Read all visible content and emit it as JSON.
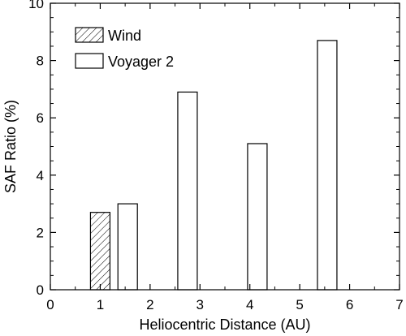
{
  "chart_data": {
    "type": "bar",
    "xlabel": "Heliocentric Distance (AU)",
    "ylabel": "SAF Ratio (%)",
    "xlim": [
      0,
      7
    ],
    "ylim": [
      0,
      10
    ],
    "xticks": [
      0,
      1,
      2,
      3,
      4,
      5,
      6,
      7
    ],
    "yticks": [
      0,
      2,
      4,
      6,
      8,
      10
    ],
    "grid": false,
    "legend_position": "top-left",
    "colors": {
      "axis": "#000000",
      "bar_edge": "#000000",
      "bar_fill": "#ffffff",
      "hatch": "#000000"
    },
    "series": [
      {
        "name": "Wind",
        "pattern": "hatched",
        "x": [
          1.0
        ],
        "values": [
          2.7
        ]
      },
      {
        "name": "Voyager 2",
        "pattern": "open",
        "x": [
          1.55,
          2.75,
          4.15,
          5.55
        ],
        "values": [
          3.0,
          6.9,
          5.1,
          8.7
        ]
      }
    ]
  }
}
